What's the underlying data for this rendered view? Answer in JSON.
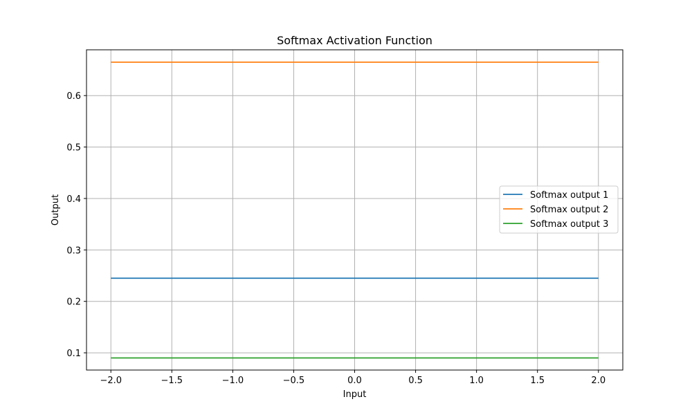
{
  "chart_data": {
    "type": "line",
    "title": "Softmax Activation Function",
    "xlabel": "Input",
    "ylabel": "Output",
    "x": [
      -2.0,
      2.0
    ],
    "xlim": [
      -2.2,
      2.2
    ],
    "ylim": [
      0.0665,
      0.689
    ],
    "xticks": [
      -2.0,
      -1.5,
      -1.0,
      -0.5,
      0.0,
      0.5,
      1.0,
      1.5,
      2.0
    ],
    "xtick_labels": [
      "−2.0",
      "−1.5",
      "−1.0",
      "−0.5",
      "0.0",
      "0.5",
      "1.0",
      "1.5",
      "2.0"
    ],
    "yticks": [
      0.1,
      0.2,
      0.3,
      0.4,
      0.5,
      0.6
    ],
    "ytick_labels": [
      "0.1",
      "0.2",
      "0.3",
      "0.4",
      "0.5",
      "0.6"
    ],
    "grid": true,
    "legend_position": "center-right",
    "series": [
      {
        "name": "Softmax output 1",
        "color": "#1f77b4",
        "values": [
          0.245,
          0.245
        ]
      },
      {
        "name": "Softmax output 2",
        "color": "#ff7f0e",
        "values": [
          0.665,
          0.665
        ]
      },
      {
        "name": "Softmax output 3",
        "color": "#2ca02c",
        "values": [
          0.09,
          0.09
        ]
      }
    ]
  }
}
